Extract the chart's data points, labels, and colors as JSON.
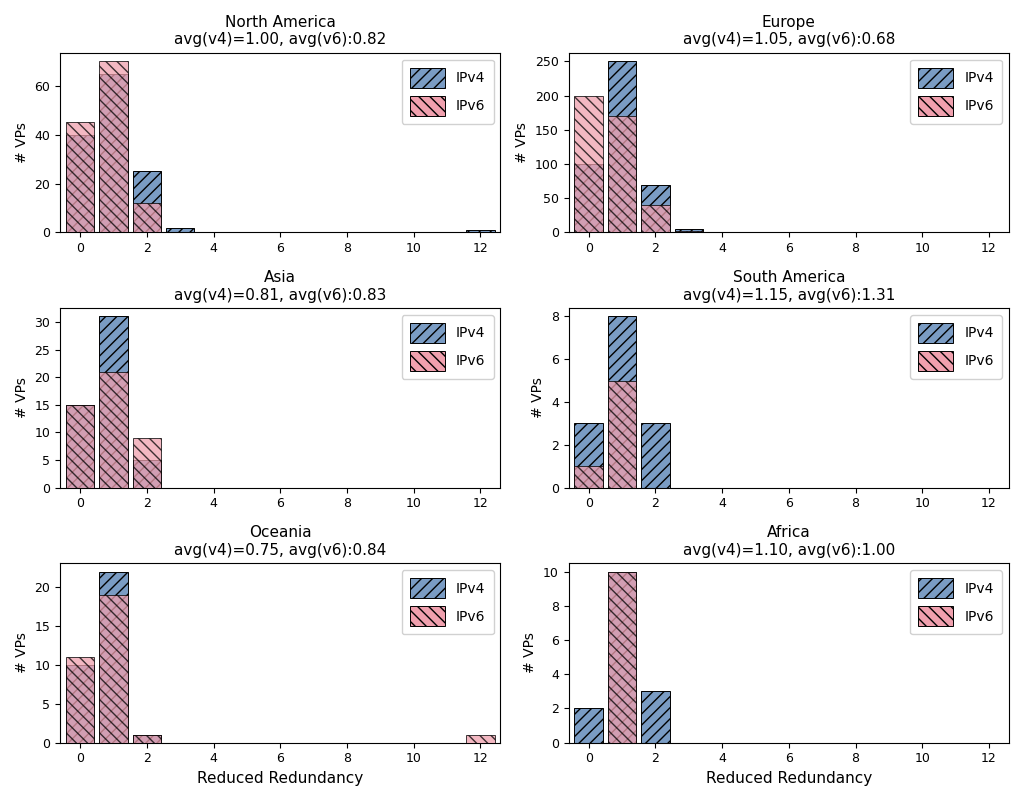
{
  "regions": [
    {
      "name": "North America",
      "title": "North America\navg(v4)=1.00, avg(v6):0.82",
      "ipv4": [
        40,
        65,
        25,
        2,
        0,
        0,
        0,
        0,
        0,
        0,
        0,
        0,
        1
      ],
      "ipv6": [
        45,
        70,
        12,
        0,
        0,
        0,
        0,
        0,
        0,
        0,
        0,
        0,
        0
      ]
    },
    {
      "name": "Europe",
      "title": "Europe\navg(v4)=1.05, avg(v6):0.68",
      "ipv4": [
        100,
        250,
        70,
        5,
        0,
        0,
        0,
        0,
        0,
        0,
        0,
        0,
        0
      ],
      "ipv6": [
        200,
        170,
        40,
        2,
        0,
        0,
        0,
        0,
        0,
        0,
        0,
        0,
        0
      ]
    },
    {
      "name": "Asia",
      "title": "Asia\navg(v4)=0.81, avg(v6):0.83",
      "ipv4": [
        15,
        31,
        5,
        0,
        0,
        0,
        0,
        0,
        0,
        0,
        0,
        0,
        0
      ],
      "ipv6": [
        15,
        21,
        9,
        0,
        0,
        0,
        0,
        0,
        0,
        0,
        0,
        0,
        0
      ]
    },
    {
      "name": "South America",
      "title": "South America\navg(v4)=1.15, avg(v6):1.31",
      "ipv4": [
        3,
        8,
        3,
        0,
        0,
        0,
        0,
        0,
        0,
        0,
        0,
        0,
        0
      ],
      "ipv6": [
        1,
        5,
        0,
        0,
        0,
        0,
        0,
        0,
        0,
        0,
        0,
        0,
        0
      ]
    },
    {
      "name": "Oceania",
      "title": "Oceania\navg(v4)=0.75, avg(v6):0.84",
      "ipv4": [
        10,
        22,
        1,
        0,
        0,
        0,
        0,
        0,
        0,
        0,
        0,
        0,
        0
      ],
      "ipv6": [
        11,
        19,
        1,
        0,
        0,
        0,
        0,
        0,
        0,
        0,
        0,
        0,
        1
      ]
    },
    {
      "name": "Africa",
      "title": "Africa\navg(v4)=1.10, avg(v6):1.00",
      "ipv4": [
        2,
        10,
        3,
        0,
        0,
        0,
        0,
        0,
        0,
        0,
        0,
        0,
        0
      ],
      "ipv6": [
        0,
        10,
        0,
        0,
        0,
        0,
        0,
        0,
        0,
        0,
        0,
        0,
        0
      ]
    }
  ],
  "x_bins": [
    0,
    1,
    2,
    3,
    4,
    5,
    6,
    7,
    8,
    9,
    10,
    11,
    12
  ],
  "xlim": [
    -0.6,
    12.6
  ],
  "xticks": [
    0,
    2,
    4,
    6,
    8,
    10,
    12
  ],
  "xlabel": "Reduced Redundancy",
  "ylabel": "# VPs",
  "ipv4_color": "#7a9cc4",
  "ipv6_color": "#f0a0ae",
  "bar_width": 0.85
}
